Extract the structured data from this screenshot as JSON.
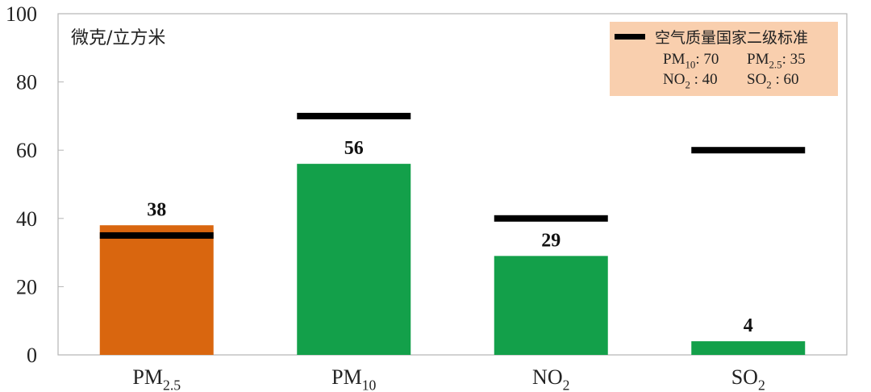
{
  "chart_data": {
    "type": "bar",
    "categories": [
      {
        "base": "PM",
        "sub": "2.5"
      },
      {
        "base": "PM",
        "sub": "10"
      },
      {
        "base": "NO",
        "sub": "2"
      },
      {
        "base": "SO",
        "sub": "2"
      }
    ],
    "values": [
      38,
      56,
      29,
      4
    ],
    "value_labels": [
      "38",
      "56",
      "29",
      "4"
    ],
    "bar_colors": [
      "#d9660f",
      "#13a04a",
      "#13a04a",
      "#13a04a"
    ],
    "standards": [
      35,
      70,
      40,
      60
    ],
    "standard_color": "#000000",
    "unit_label": "微克/立方米",
    "ylim": [
      0,
      100
    ],
    "yticks": [
      0,
      20,
      40,
      60,
      80,
      100
    ],
    "grid": false,
    "legend": {
      "position": "top-right",
      "background": "#f9cfae",
      "title": "空气质量国家二级标准",
      "entries": [
        {
          "base": "PM",
          "sub": "10",
          "value": ": 70"
        },
        {
          "base": "PM",
          "sub": "2.5",
          "value": ": 35"
        },
        {
          "base": "NO",
          "sub": "2",
          "value": " : 40"
        },
        {
          "base": "SO",
          "sub": "2",
          "value": " : 60"
        }
      ]
    }
  }
}
